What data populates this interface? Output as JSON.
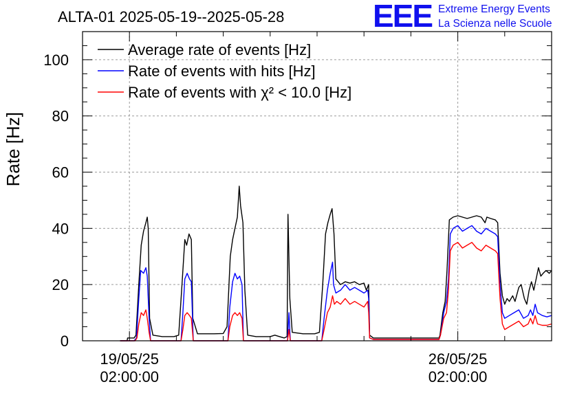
{
  "header": {
    "title": "ALTA-01 2025-05-19--2025-05-28",
    "logo_text": "EEE",
    "org_line1": "Extreme Energy Events",
    "org_line2": "La Scienza nelle Scuole",
    "brand_color": "#1010ee"
  },
  "chart_data": {
    "type": "line",
    "ylabel": "Rate [Hz]",
    "ylim": [
      0,
      110
    ],
    "yticks": [
      "0",
      "20",
      "40",
      "60",
      "80",
      "100"
    ],
    "xlim_days": [
      -1.0,
      9.0
    ],
    "xticks": [
      {
        "day": 0,
        "date": "19/05/25",
        "time": "02:00:00"
      },
      {
        "day": 7,
        "date": "26/05/25",
        "time": "02:00:00"
      }
    ],
    "grid": true,
    "legend_position": "top-left",
    "series": [
      {
        "name": "Average rate of events [Hz]",
        "color": "#000000",
        "points": [
          [
            -0.2,
            0
          ],
          [
            -0.05,
            0
          ],
          [
            -0.04,
            1
          ],
          [
            0.1,
            1
          ],
          [
            0.14,
            2
          ],
          [
            0.2,
            20
          ],
          [
            0.25,
            34
          ],
          [
            0.3,
            39
          ],
          [
            0.35,
            42
          ],
          [
            0.38,
            44
          ],
          [
            0.4,
            40
          ],
          [
            0.43,
            8
          ],
          [
            0.5,
            2
          ],
          [
            0.7,
            1.5
          ],
          [
            0.95,
            1.5
          ],
          [
            1.05,
            2
          ],
          [
            1.12,
            20
          ],
          [
            1.18,
            36
          ],
          [
            1.22,
            34
          ],
          [
            1.27,
            38
          ],
          [
            1.32,
            36
          ],
          [
            1.35,
            8
          ],
          [
            1.45,
            2.5
          ],
          [
            1.8,
            2.5
          ],
          [
            2.0,
            2.6
          ],
          [
            2.08,
            5
          ],
          [
            2.15,
            30
          ],
          [
            2.2,
            36
          ],
          [
            2.25,
            40
          ],
          [
            2.3,
            44
          ],
          [
            2.34,
            55
          ],
          [
            2.37,
            48
          ],
          [
            2.42,
            42
          ],
          [
            2.46,
            18
          ],
          [
            2.52,
            2
          ],
          [
            2.7,
            1.5
          ],
          [
            3.0,
            1.5
          ],
          [
            3.1,
            2.0
          ],
          [
            3.2,
            1.5
          ],
          [
            3.3,
            1.0
          ],
          [
            3.36,
            1.5
          ],
          [
            3.38,
            45
          ],
          [
            3.42,
            15
          ],
          [
            3.47,
            3
          ],
          [
            3.7,
            2.5
          ],
          [
            3.95,
            2.5
          ],
          [
            4.05,
            3
          ],
          [
            4.12,
            20
          ],
          [
            4.18,
            38
          ],
          [
            4.23,
            42
          ],
          [
            4.28,
            45
          ],
          [
            4.32,
            47
          ],
          [
            4.36,
            38
          ],
          [
            4.4,
            22
          ],
          [
            4.5,
            20
          ],
          [
            4.6,
            21
          ],
          [
            4.7,
            20.5
          ],
          [
            4.8,
            21
          ],
          [
            4.9,
            20
          ],
          [
            5.0,
            20.5
          ],
          [
            5.05,
            18
          ],
          [
            5.1,
            20
          ],
          [
            5.12,
            2
          ],
          [
            5.2,
            1
          ],
          [
            6.0,
            1
          ],
          [
            6.6,
            1
          ],
          [
            6.62,
            2
          ],
          [
            6.68,
            10
          ],
          [
            6.73,
            14
          ],
          [
            6.77,
            25
          ],
          [
            6.82,
            43
          ],
          [
            6.9,
            44
          ],
          [
            7.0,
            44.5
          ],
          [
            7.1,
            44
          ],
          [
            7.2,
            43.5
          ],
          [
            7.3,
            44
          ],
          [
            7.4,
            44.5
          ],
          [
            7.5,
            44
          ],
          [
            7.58,
            42
          ],
          [
            7.62,
            44
          ],
          [
            7.7,
            43.5
          ],
          [
            7.8,
            43
          ],
          [
            7.85,
            42
          ],
          [
            7.9,
            24
          ],
          [
            7.95,
            16
          ],
          [
            8.0,
            13
          ],
          [
            8.05,
            15
          ],
          [
            8.1,
            14
          ],
          [
            8.17,
            16
          ],
          [
            8.22,
            14
          ],
          [
            8.3,
            19
          ],
          [
            8.35,
            20
          ],
          [
            8.42,
            15
          ],
          [
            8.47,
            13
          ],
          [
            8.52,
            18
          ],
          [
            8.57,
            21
          ],
          [
            8.62,
            18
          ],
          [
            8.67,
            22
          ],
          [
            8.72,
            26
          ],
          [
            8.77,
            23
          ],
          [
            8.82,
            24
          ],
          [
            8.88,
            25
          ],
          [
            8.95,
            24
          ],
          [
            9.0,
            25
          ]
        ]
      },
      {
        "name": "Rate of events with hits [Hz]",
        "color": "#0000ff",
        "points": [
          [
            -0.2,
            0
          ],
          [
            -0.04,
            0
          ],
          [
            0.1,
            0
          ],
          [
            0.15,
            1
          ],
          [
            0.2,
            15
          ],
          [
            0.24,
            25
          ],
          [
            0.3,
            24
          ],
          [
            0.35,
            26
          ],
          [
            0.38,
            23
          ],
          [
            0.42,
            8
          ],
          [
            0.45,
            0
          ],
          [
            1.1,
            0
          ],
          [
            1.14,
            10
          ],
          [
            1.18,
            22
          ],
          [
            1.23,
            24
          ],
          [
            1.28,
            22
          ],
          [
            1.32,
            21
          ],
          [
            1.36,
            0
          ],
          [
            2.1,
            0
          ],
          [
            2.14,
            12
          ],
          [
            2.2,
            21
          ],
          [
            2.25,
            24
          ],
          [
            2.3,
            22
          ],
          [
            2.35,
            23
          ],
          [
            2.4,
            20
          ],
          [
            2.43,
            0
          ],
          [
            3.37,
            0
          ],
          [
            3.4,
            10
          ],
          [
            3.43,
            0
          ],
          [
            4.1,
            0
          ],
          [
            4.15,
            8
          ],
          [
            4.22,
            18
          ],
          [
            4.28,
            24
          ],
          [
            4.33,
            28
          ],
          [
            4.35,
            20
          ],
          [
            4.4,
            17
          ],
          [
            4.5,
            18
          ],
          [
            4.6,
            20
          ],
          [
            4.7,
            18
          ],
          [
            4.8,
            19
          ],
          [
            4.9,
            18
          ],
          [
            5.0,
            17
          ],
          [
            5.08,
            18
          ],
          [
            5.1,
            15
          ],
          [
            5.12,
            1
          ],
          [
            5.2,
            0.5
          ],
          [
            6.0,
            0.5
          ],
          [
            6.6,
            0.5
          ],
          [
            6.63,
            2
          ],
          [
            6.7,
            10
          ],
          [
            6.76,
            14
          ],
          [
            6.8,
            22
          ],
          [
            6.84,
            38
          ],
          [
            6.9,
            40
          ],
          [
            7.0,
            41
          ],
          [
            7.1,
            39
          ],
          [
            7.2,
            40
          ],
          [
            7.3,
            41
          ],
          [
            7.4,
            39
          ],
          [
            7.5,
            38
          ],
          [
            7.6,
            40
          ],
          [
            7.7,
            39
          ],
          [
            7.8,
            38
          ],
          [
            7.85,
            37
          ],
          [
            7.9,
            20
          ],
          [
            7.95,
            10
          ],
          [
            8.0,
            8
          ],
          [
            8.1,
            9
          ],
          [
            8.2,
            10
          ],
          [
            8.3,
            11
          ],
          [
            8.4,
            8
          ],
          [
            8.5,
            9
          ],
          [
            8.55,
            11
          ],
          [
            8.6,
            9
          ],
          [
            8.65,
            13
          ],
          [
            8.7,
            10
          ],
          [
            8.8,
            9
          ],
          [
            8.9,
            8.5
          ],
          [
            9.0,
            9
          ]
        ]
      },
      {
        "name": "Rate of events with χ² < 10.0 [Hz]",
        "color": "#ff0000",
        "points": [
          [
            -0.2,
            0
          ],
          [
            0.12,
            0
          ],
          [
            0.16,
            1
          ],
          [
            0.2,
            6
          ],
          [
            0.25,
            10
          ],
          [
            0.3,
            9
          ],
          [
            0.35,
            11
          ],
          [
            0.38,
            8
          ],
          [
            0.42,
            3
          ],
          [
            0.45,
            0
          ],
          [
            1.1,
            0
          ],
          [
            1.14,
            4
          ],
          [
            1.18,
            9
          ],
          [
            1.23,
            10
          ],
          [
            1.28,
            9
          ],
          [
            1.32,
            8
          ],
          [
            1.36,
            0
          ],
          [
            2.1,
            0
          ],
          [
            2.14,
            5
          ],
          [
            2.2,
            9
          ],
          [
            2.25,
            10
          ],
          [
            2.3,
            9
          ],
          [
            2.35,
            10
          ],
          [
            2.4,
            8
          ],
          [
            2.43,
            0
          ],
          [
            3.37,
            0
          ],
          [
            3.4,
            4
          ],
          [
            3.43,
            0
          ],
          [
            4.1,
            0
          ],
          [
            4.15,
            4
          ],
          [
            4.22,
            10
          ],
          [
            4.28,
            12
          ],
          [
            4.33,
            16
          ],
          [
            4.37,
            13
          ],
          [
            4.42,
            14
          ],
          [
            4.5,
            13
          ],
          [
            4.6,
            15
          ],
          [
            4.7,
            13
          ],
          [
            4.8,
            14
          ],
          [
            4.9,
            13
          ],
          [
            5.0,
            12
          ],
          [
            5.08,
            14
          ],
          [
            5.1,
            10
          ],
          [
            5.12,
            1
          ],
          [
            5.2,
            0.5
          ],
          [
            6.0,
            0.5
          ],
          [
            6.6,
            0.5
          ],
          [
            6.63,
            2
          ],
          [
            6.7,
            8
          ],
          [
            6.76,
            10
          ],
          [
            6.8,
            18
          ],
          [
            6.84,
            32
          ],
          [
            6.9,
            34
          ],
          [
            7.0,
            35
          ],
          [
            7.1,
            33
          ],
          [
            7.2,
            34
          ],
          [
            7.3,
            35
          ],
          [
            7.4,
            33
          ],
          [
            7.5,
            32
          ],
          [
            7.6,
            34
          ],
          [
            7.7,
            33
          ],
          [
            7.8,
            32
          ],
          [
            7.85,
            31
          ],
          [
            7.9,
            15
          ],
          [
            7.95,
            6
          ],
          [
            8.0,
            4
          ],
          [
            8.1,
            5
          ],
          [
            8.2,
            6
          ],
          [
            8.3,
            7
          ],
          [
            8.4,
            5
          ],
          [
            8.5,
            6
          ],
          [
            8.55,
            8
          ],
          [
            8.6,
            6
          ],
          [
            8.65,
            9
          ],
          [
            8.7,
            6
          ],
          [
            8.8,
            5.5
          ],
          [
            8.9,
            5.5
          ],
          [
            9.0,
            6
          ]
        ]
      }
    ]
  }
}
